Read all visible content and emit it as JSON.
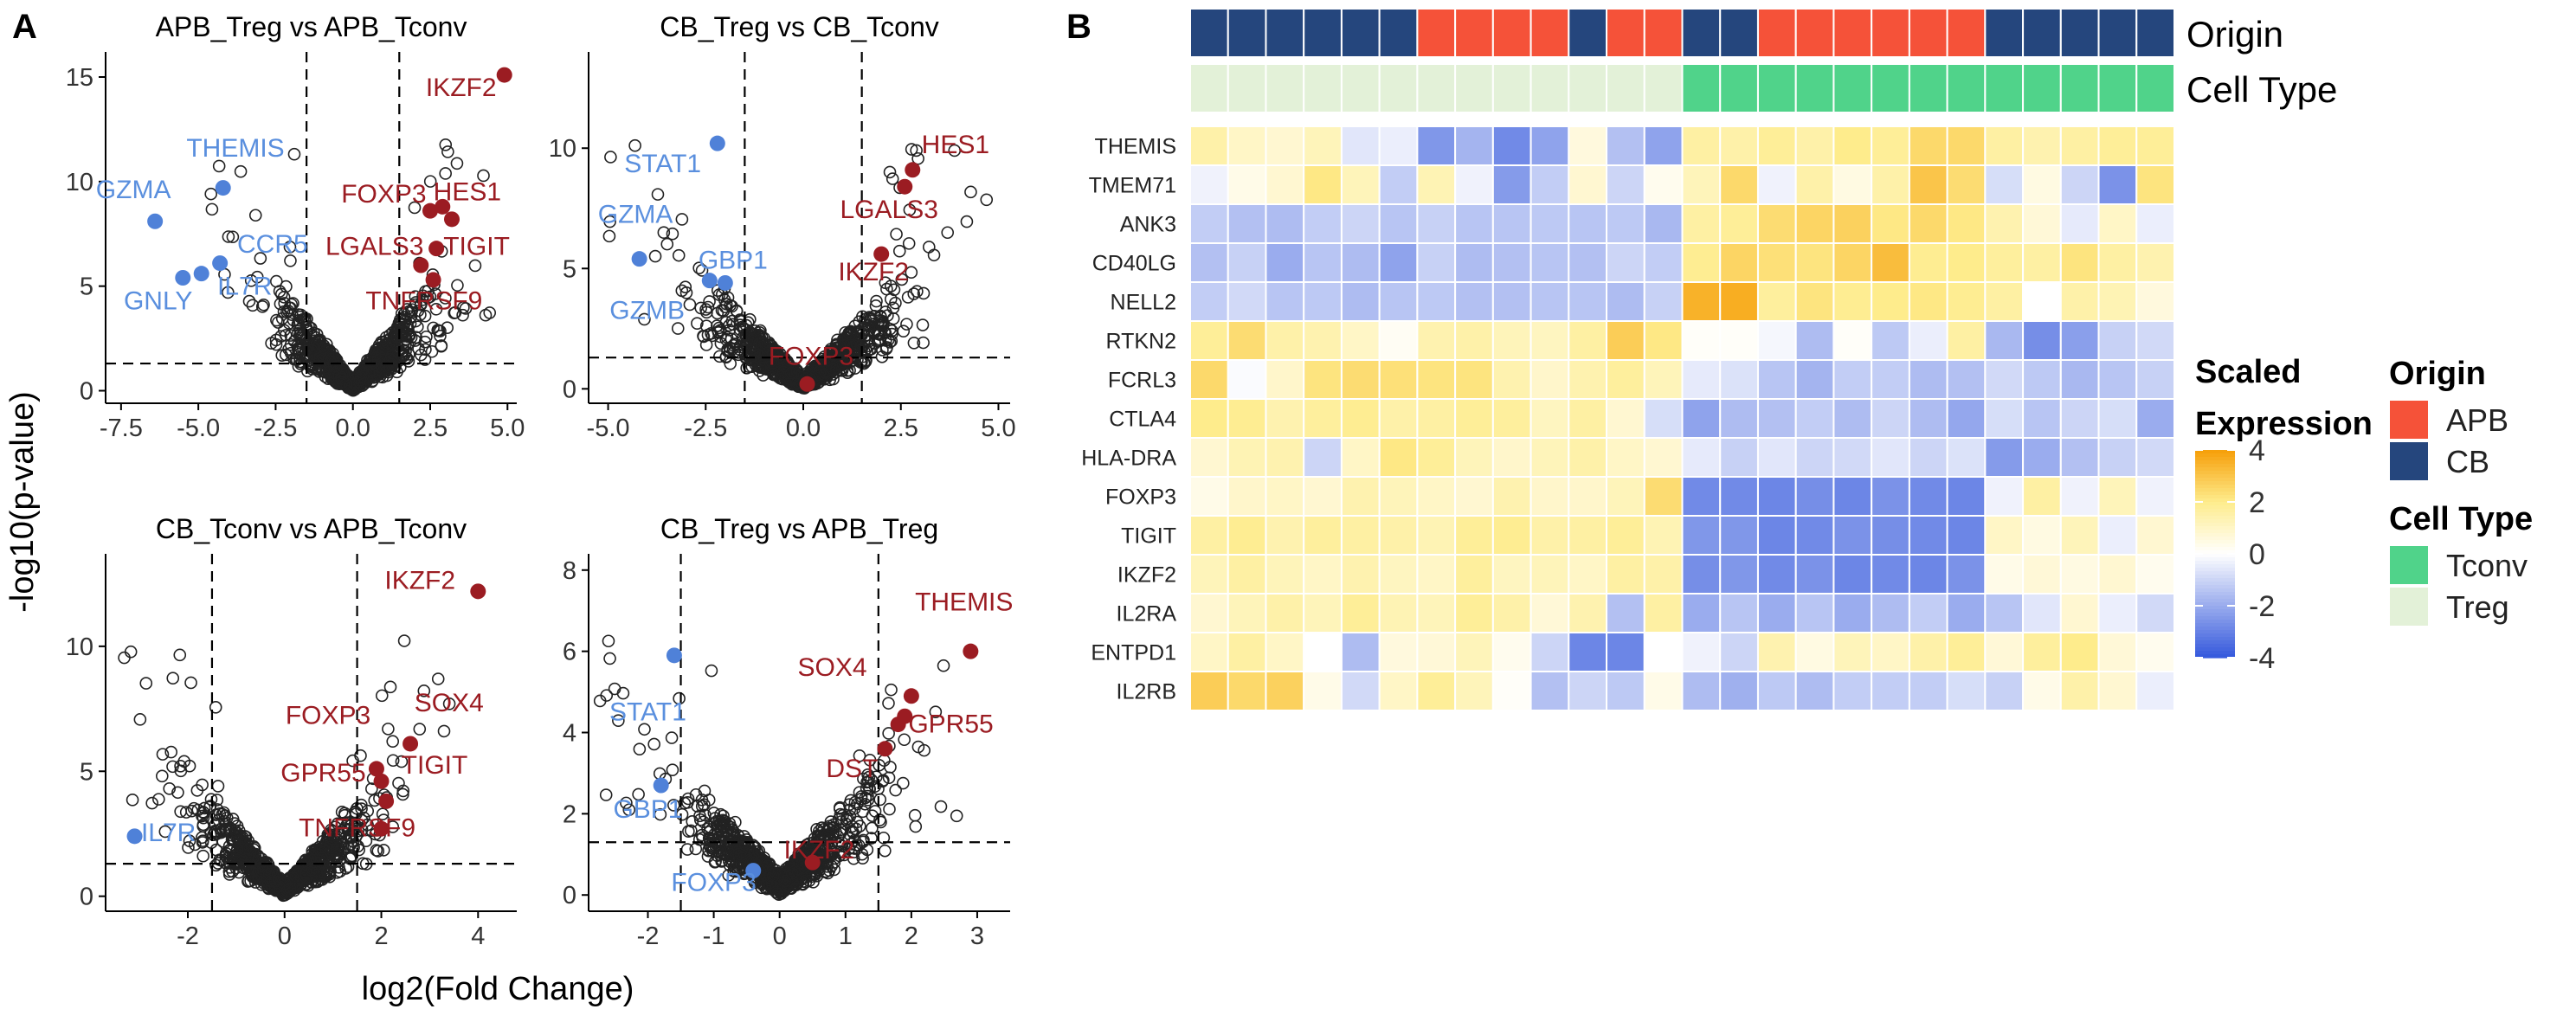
{
  "panel_labels": {
    "a": "A",
    "b": "B"
  },
  "colors": {
    "up": "#9b1c22",
    "down": "#4f81d8",
    "down_text": "#5a8fde",
    "ns_stroke": "#222222",
    "apb": "#f55239",
    "cb": "#25467d",
    "tconv": "#50d38a",
    "treg": "#e3f1d8"
  },
  "shared_axes": {
    "ylabel": "-log10(p-value)",
    "xlabel": "log2(Fold Change)"
  },
  "chart_data": [
    {
      "type": "scatter",
      "id": "apb-treg-vs-tconv",
      "title": "APB_Treg vs APB_Tconv",
      "xlim": [
        -8.0,
        5.3
      ],
      "ylim": [
        -0.6,
        16.2
      ],
      "xticks": [
        -7.5,
        -5.0,
        -2.5,
        0.0,
        2.5,
        5.0
      ],
      "xtick_labels": [
        "-7.5",
        "-5.0",
        "-2.5",
        "0.0",
        "2.5",
        "5.0"
      ],
      "yticks": [
        0,
        5,
        10,
        15
      ],
      "ytick_labels": [
        "0",
        "5",
        "10",
        "15"
      ],
      "fc_threshold": [
        -1.5,
        1.5
      ],
      "p_threshold": 1.3,
      "highlight_points": [
        {
          "x": 4.9,
          "y": 15.1,
          "group": "up"
        },
        {
          "x": 2.5,
          "y": 8.6,
          "group": "up"
        },
        {
          "x": 2.9,
          "y": 8.8,
          "group": "up"
        },
        {
          "x": 3.2,
          "y": 8.2,
          "group": "up"
        },
        {
          "x": 2.7,
          "y": 6.8,
          "group": "up"
        },
        {
          "x": 2.2,
          "y": 6.0,
          "group": "up"
        },
        {
          "x": 2.6,
          "y": 5.3,
          "group": "up"
        },
        {
          "x": -6.4,
          "y": 8.1,
          "group": "down"
        },
        {
          "x": -4.2,
          "y": 9.7,
          "group": "down"
        },
        {
          "x": -5.5,
          "y": 5.4,
          "group": "down"
        },
        {
          "x": -4.9,
          "y": 5.6,
          "group": "down"
        },
        {
          "x": -4.3,
          "y": 6.1,
          "group": "down"
        }
      ],
      "labels": [
        {
          "text": "IKZF2",
          "x": 3.5,
          "y": 14.1,
          "group": "up"
        },
        {
          "text": "HES1",
          "x": 3.7,
          "y": 9.1,
          "group": "up"
        },
        {
          "text": "FOXP3",
          "x": 1.0,
          "y": 9.0,
          "group": "up"
        },
        {
          "text": "TIGIT",
          "x": 4.0,
          "y": 6.5,
          "group": "up"
        },
        {
          "text": "LGALS3",
          "x": 0.7,
          "y": 6.5,
          "group": "up"
        },
        {
          "text": "TNFRSF9",
          "x": 2.3,
          "y": 3.9,
          "group": "up"
        },
        {
          "text": "THEMIS",
          "x": -3.8,
          "y": 11.2,
          "group": "down"
        },
        {
          "text": "GZMA",
          "x": -7.1,
          "y": 9.2,
          "group": "down"
        },
        {
          "text": "CCR5",
          "x": -2.6,
          "y": 6.6,
          "group": "down"
        },
        {
          "text": "IL7R",
          "x": -3.5,
          "y": 4.6,
          "group": "down"
        },
        {
          "text": "GNLY",
          "x": -6.3,
          "y": 3.9,
          "group": "down"
        }
      ]
    },
    {
      "type": "scatter",
      "id": "cb-treg-vs-tconv",
      "title": "CB_Treg vs CB_Tconv",
      "xlim": [
        -5.5,
        5.3
      ],
      "ylim": [
        -0.6,
        14.0
      ],
      "xticks": [
        -5.0,
        -2.5,
        0.0,
        2.5,
        5.0
      ],
      "xtick_labels": [
        "-5.0",
        "-2.5",
        "0.0",
        "2.5",
        "5.0"
      ],
      "yticks": [
        0,
        5,
        10
      ],
      "ytick_labels": [
        "0",
        "5",
        "10"
      ],
      "fc_threshold": [
        -1.5,
        1.5
      ],
      "p_threshold": 1.3,
      "highlight_points": [
        {
          "x": 2.8,
          "y": 9.1,
          "group": "up"
        },
        {
          "x": 2.6,
          "y": 8.4,
          "group": "up"
        },
        {
          "x": 2.0,
          "y": 5.6,
          "group": "up"
        },
        {
          "x": 0.1,
          "y": 0.2,
          "group": "up"
        },
        {
          "x": -2.2,
          "y": 10.2,
          "group": "down"
        },
        {
          "x": -4.2,
          "y": 5.4,
          "group": "down"
        },
        {
          "x": -2.0,
          "y": 4.4,
          "group": "down"
        },
        {
          "x": -2.4,
          "y": 4.5,
          "group": "down"
        }
      ],
      "labels": [
        {
          "text": "HES1",
          "x": 3.9,
          "y": 9.8,
          "group": "up"
        },
        {
          "text": "LGALS3",
          "x": 2.2,
          "y": 7.1,
          "group": "up"
        },
        {
          "text": "IKZF2",
          "x": 1.8,
          "y": 4.5,
          "group": "up"
        },
        {
          "text": "FOXP3",
          "x": 0.2,
          "y": 1.0,
          "group": "up"
        },
        {
          "text": "STAT1",
          "x": -3.6,
          "y": 9.0,
          "group": "down"
        },
        {
          "text": "GZMA",
          "x": -4.3,
          "y": 6.9,
          "group": "down"
        },
        {
          "text": "GBP1",
          "x": -1.8,
          "y": 5.0,
          "group": "down"
        },
        {
          "text": "GZMB",
          "x": -4.0,
          "y": 2.9,
          "group": "down"
        }
      ]
    },
    {
      "type": "scatter",
      "id": "cb-tconv-vs-apb-tconv",
      "title": "CB_Tconv vs APB_Tconv",
      "xlim": [
        -3.7,
        4.8
      ],
      "ylim": [
        -0.6,
        13.7
      ],
      "xticks": [
        -2,
        0,
        2,
        4
      ],
      "xtick_labels": [
        "-2",
        "0",
        "2",
        "4"
      ],
      "yticks": [
        0,
        5,
        10
      ],
      "ytick_labels": [
        "0",
        "5",
        "10"
      ],
      "fc_threshold": [
        -1.5,
        1.5
      ],
      "p_threshold": 1.3,
      "highlight_points": [
        {
          "x": 4.0,
          "y": 12.2,
          "group": "up"
        },
        {
          "x": 2.6,
          "y": 6.1,
          "group": "up"
        },
        {
          "x": 2.0,
          "y": 4.6,
          "group": "up"
        },
        {
          "x": 2.1,
          "y": 3.8,
          "group": "up"
        },
        {
          "x": 1.9,
          "y": 5.1,
          "group": "up"
        },
        {
          "x": 2.0,
          "y": 2.7,
          "group": "up"
        },
        {
          "x": -3.1,
          "y": 2.4,
          "group": "down"
        }
      ],
      "labels": [
        {
          "text": "IKZF2",
          "x": 2.8,
          "y": 12.3,
          "group": "up"
        },
        {
          "text": "FOXP3",
          "x": 0.9,
          "y": 6.9,
          "group": "up"
        },
        {
          "text": "SOX4",
          "x": 3.4,
          "y": 7.4,
          "group": "up"
        },
        {
          "text": "GPR55",
          "x": 0.8,
          "y": 4.6,
          "group": "up"
        },
        {
          "text": "TIGIT",
          "x": 3.1,
          "y": 4.9,
          "group": "up"
        },
        {
          "text": "TNFRSF9",
          "x": 1.5,
          "y": 2.4,
          "group": "up"
        },
        {
          "text": "IL7R",
          "x": -2.4,
          "y": 2.2,
          "group": "down"
        }
      ]
    },
    {
      "type": "scatter",
      "id": "cb-treg-vs-apb-treg",
      "title": "CB_Treg vs APB_Treg",
      "xlim": [
        -2.9,
        3.5
      ],
      "ylim": [
        -0.4,
        8.4
      ],
      "xticks": [
        -2,
        -1,
        0,
        1,
        2,
        3
      ],
      "xtick_labels": [
        "-2",
        "-1",
        "0",
        "1",
        "2",
        "3"
      ],
      "yticks": [
        0,
        2,
        4,
        6,
        8
      ],
      "ytick_labels": [
        "0",
        "2",
        "4",
        "6",
        "8"
      ],
      "fc_threshold": [
        -1.5,
        1.5
      ],
      "p_threshold": 1.3,
      "highlight_points": [
        {
          "x": 2.9,
          "y": 6.0,
          "group": "up"
        },
        {
          "x": 2.0,
          "y": 4.9,
          "group": "up"
        },
        {
          "x": 1.9,
          "y": 4.4,
          "group": "up"
        },
        {
          "x": 1.8,
          "y": 4.2,
          "group": "up"
        },
        {
          "x": 1.6,
          "y": 3.6,
          "group": "up"
        },
        {
          "x": 0.5,
          "y": 0.8,
          "group": "up"
        },
        {
          "x": -1.6,
          "y": 5.9,
          "group": "down"
        },
        {
          "x": -1.8,
          "y": 2.7,
          "group": "down"
        },
        {
          "x": -0.4,
          "y": 0.6,
          "group": "down"
        }
      ],
      "labels": [
        {
          "text": "THEMIS",
          "x": 2.8,
          "y": 7.0,
          "group": "up"
        },
        {
          "text": "SOX4",
          "x": 0.8,
          "y": 5.4,
          "group": "up"
        },
        {
          "text": "GPR55",
          "x": 2.6,
          "y": 4.0,
          "group": "up"
        },
        {
          "text": "DST",
          "x": 1.1,
          "y": 2.9,
          "group": "up"
        },
        {
          "text": "IKZF2",
          "x": 0.6,
          "y": 0.9,
          "group": "up"
        },
        {
          "text": "STAT1",
          "x": -2.0,
          "y": 4.3,
          "group": "down"
        },
        {
          "text": "GBP1",
          "x": -2.0,
          "y": 1.9,
          "group": "down"
        },
        {
          "text": "FOXP3",
          "x": -1.0,
          "y": 0.1,
          "group": "down"
        }
      ]
    },
    {
      "type": "heatmap",
      "id": "expression-heatmap",
      "genes": [
        "THEMIS",
        "TMEM71",
        "ANK3",
        "CD40LG",
        "NELL2",
        "RTKN2",
        "FCRL3",
        "CTLA4",
        "HLA-DRA",
        "FOXP3",
        "TIGIT",
        "IKZF2",
        "IL2RA",
        "ENTPD1",
        "IL2RB"
      ],
      "origin_annotation": [
        "CB",
        "CB",
        "CB",
        "CB",
        "CB",
        "CB",
        "APB",
        "APB",
        "APB",
        "APB",
        "CB",
        "APB",
        "APB",
        "CB",
        "CB",
        "APB",
        "APB",
        "APB",
        "APB",
        "APB",
        "APB",
        "CB",
        "CB",
        "CB",
        "CB",
        "CB"
      ],
      "celltype_annotation": [
        "Treg",
        "Treg",
        "Treg",
        "Treg",
        "Treg",
        "Treg",
        "Treg",
        "Treg",
        "Treg",
        "Treg",
        "Treg",
        "Treg",
        "Treg",
        "Tconv",
        "Tconv",
        "Tconv",
        "Tconv",
        "Tconv",
        "Tconv",
        "Tconv",
        "Tconv",
        "Tconv",
        "Tconv",
        "Tconv",
        "Tconv",
        "Tconv"
      ],
      "annotation_labels": [
        "Origin",
        "Cell Type"
      ],
      "color_range": [
        -4,
        4
      ],
      "values": [
        [
          1.5,
          1.0,
          0.8,
          1.2,
          -0.6,
          -0.4,
          -2.5,
          -1.8,
          -2.8,
          -2.2,
          0.6,
          -1.5,
          -2.2,
          1.6,
          1.5,
          1.8,
          1.5,
          2.0,
          1.8,
          2.5,
          2.5,
          1.6,
          1.4,
          1.6,
          1.8,
          1.8
        ],
        [
          -0.3,
          0.4,
          0.8,
          2.1,
          1.2,
          -1.2,
          1.3,
          -0.3,
          -2.4,
          -1.2,
          0.8,
          -1.0,
          0.3,
          1.2,
          2.5,
          -0.3,
          1.5,
          0.5,
          1.5,
          3.0,
          2.4,
          -0.8,
          0.5,
          -1.0,
          -2.6,
          2.2
        ],
        [
          -1.2,
          -1.5,
          -1.6,
          -1.2,
          -1.0,
          -1.4,
          -1.1,
          -1.4,
          -1.4,
          -1.3,
          -1.4,
          -1.3,
          -1.7,
          1.6,
          1.8,
          2.4,
          2.6,
          2.7,
          2.1,
          2.5,
          2.1,
          1.4,
          0.7,
          -0.5,
          1.0,
          -0.4
        ],
        [
          -1.5,
          -1.1,
          -2.0,
          -1.4,
          -1.6,
          -2.2,
          -1.1,
          -1.6,
          -1.5,
          -1.4,
          -1.5,
          -1.0,
          -1.2,
          1.9,
          2.6,
          2.3,
          2.2,
          2.6,
          3.2,
          1.9,
          2.0,
          1.7,
          1.6,
          2.2,
          1.6,
          1.4
        ],
        [
          -1.2,
          -0.9,
          -1.4,
          -1.3,
          -1.6,
          -1.4,
          -1.3,
          -1.5,
          -1.5,
          -1.4,
          -1.4,
          -1.6,
          -1.1,
          3.5,
          3.6,
          1.7,
          2.2,
          1.9,
          2.0,
          2.1,
          1.9,
          1.6,
          0.0,
          1.5,
          1.3,
          0.6
        ],
        [
          1.8,
          2.4,
          1.5,
          1.4,
          1.0,
          0.2,
          1.4,
          1.5,
          1.2,
          1.1,
          1.6,
          2.8,
          2.1,
          0.1,
          0.1,
          -0.2,
          -1.6,
          0.1,
          -1.3,
          -0.4,
          1.6,
          -1.7,
          -2.7,
          -2.3,
          -1.1,
          -0.9
        ],
        [
          2.5,
          -0.1,
          0.9,
          2.2,
          2.4,
          2.3,
          2.2,
          2.2,
          1.4,
          0.9,
          1.4,
          1.7,
          1.2,
          -0.5,
          -0.7,
          -1.4,
          -1.8,
          -1.2,
          -1.2,
          -1.6,
          -1.5,
          -0.9,
          -1.3,
          -1.7,
          -1.4,
          -1.1
        ],
        [
          2.0,
          1.9,
          1.4,
          1.7,
          1.9,
          1.5,
          1.6,
          1.8,
          1.7,
          1.1,
          1.6,
          0.8,
          -0.8,
          -2.2,
          -1.6,
          -1.5,
          -1.2,
          -1.6,
          -1.0,
          -1.6,
          -2.1,
          -0.8,
          -1.4,
          -1.0,
          -0.8,
          -2.0
        ],
        [
          0.8,
          1.3,
          1.4,
          -1.0,
          1.0,
          2.1,
          1.8,
          1.2,
          0.9,
          1.2,
          1.5,
          1.0,
          0.8,
          -0.5,
          -1.1,
          -0.6,
          -1.0,
          -0.9,
          -0.6,
          -1.0,
          -0.7,
          -2.4,
          -2.0,
          -1.5,
          -1.1,
          -0.9
        ],
        [
          0.4,
          0.9,
          1.0,
          0.8,
          1.4,
          1.2,
          1.0,
          0.8,
          1.4,
          0.9,
          0.9,
          1.2,
          2.4,
          -2.8,
          -2.8,
          -2.9,
          -2.7,
          -2.9,
          -2.6,
          -2.8,
          -2.9,
          -0.3,
          1.6,
          -0.3,
          1.2,
          -0.3
        ],
        [
          1.6,
          1.9,
          1.4,
          1.7,
          1.6,
          1.5,
          1.3,
          1.8,
          1.9,
          1.5,
          1.6,
          1.8,
          1.3,
          -2.5,
          -2.5,
          -2.9,
          -2.8,
          -2.6,
          -2.7,
          -2.8,
          -2.9,
          1.0,
          0.5,
          1.2,
          -0.4,
          0.8
        ],
        [
          1.2,
          1.6,
          1.2,
          1.0,
          1.4,
          1.1,
          1.0,
          1.7,
          1.1,
          1.2,
          1.0,
          1.6,
          1.5,
          -2.7,
          -2.5,
          -2.8,
          -2.6,
          -2.9,
          -2.8,
          -2.9,
          -2.6,
          0.4,
          0.7,
          0.5,
          0.8,
          0.3
        ],
        [
          0.8,
          1.2,
          1.5,
          1.2,
          1.8,
          1.3,
          1.2,
          1.8,
          1.5,
          0.7,
          1.4,
          -1.5,
          1.6,
          -2.0,
          -1.4,
          -2.0,
          -1.4,
          -2.0,
          -1.6,
          -1.2,
          -2.0,
          -1.4,
          -0.6,
          0.8,
          -0.4,
          -0.9
        ],
        [
          1.0,
          1.6,
          1.0,
          0.0,
          -1.6,
          0.6,
          0.7,
          1.2,
          0.3,
          -1.0,
          -2.9,
          -2.9,
          0.0,
          -0.3,
          -1.0,
          1.4,
          0.5,
          1.2,
          1.0,
          1.5,
          1.8,
          0.7,
          1.7,
          2.0,
          0.7,
          0.3
        ],
        [
          2.8,
          2.5,
          2.7,
          0.4,
          -0.9,
          1.0,
          1.8,
          1.2,
          0.1,
          -1.5,
          -1.0,
          -1.3,
          0.4,
          -1.6,
          -1.9,
          -1.3,
          -1.6,
          -1.2,
          -1.2,
          -1.2,
          -0.8,
          -1.1,
          0.4,
          1.5,
          0.8,
          -0.4
        ]
      ],
      "colorbar": {
        "title_line1": "Scaled",
        "title_line2": "Expression",
        "ticks": [
          4,
          2,
          0,
          -2,
          -4
        ],
        "tick_labels": [
          "4",
          "2",
          "0",
          "-2",
          "-4"
        ]
      },
      "legend": {
        "origin_title": "Origin",
        "origin_items": [
          "APB",
          "CB"
        ],
        "celltype_title": "Cell Type",
        "celltype_items": [
          "Tconv",
          "Treg"
        ]
      }
    }
  ]
}
